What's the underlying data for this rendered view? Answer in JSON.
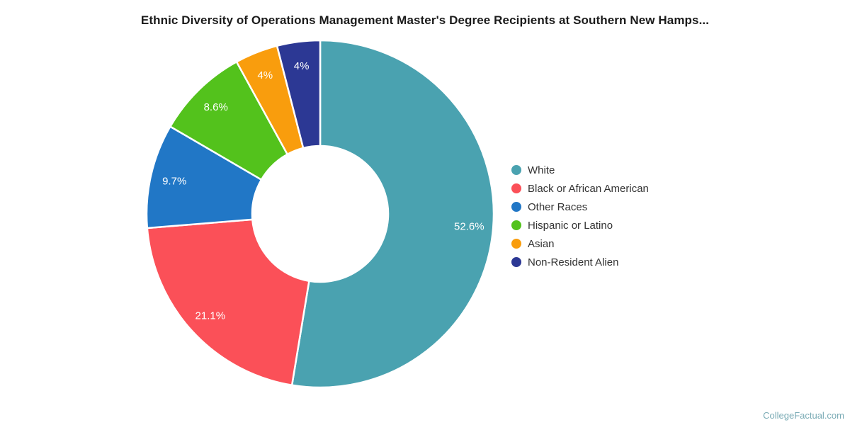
{
  "chart_data": {
    "type": "pie",
    "subtype": "donut",
    "title": "Ethnic Diversity of Operations Management Master's Degree Recipients at Southern New Hamps...",
    "legend_position": "right",
    "start_angle_deg": 0,
    "inner_radius_ratio": 0.39,
    "slice_border_color": "#ffffff",
    "label_color": "#ffffff",
    "slices": [
      {
        "name": "White",
        "value": 52.6,
        "label": "52.6%",
        "color": "#4aa2b0"
      },
      {
        "name": "Black or African American",
        "value": 21.1,
        "label": "21.1%",
        "color": "#fb5058"
      },
      {
        "name": "Other Races",
        "value": 9.7,
        "label": "9.7%",
        "color": "#2177c6"
      },
      {
        "name": "Hispanic or Latino",
        "value": 8.6,
        "label": "8.6%",
        "color": "#53c21c"
      },
      {
        "name": "Asian",
        "value": 4,
        "label": "4%",
        "color": "#f99d0d"
      },
      {
        "name": "Non-Resident Alien",
        "value": 4,
        "label": "4%",
        "color": "#2c3894"
      }
    ]
  },
  "footer": {
    "watermark": "CollegeFactual.com"
  },
  "colors": {
    "background": "#ffffff",
    "title_text": "#1b1b1b",
    "legend_text": "#333333",
    "watermark_text": "#7aabb5"
  }
}
